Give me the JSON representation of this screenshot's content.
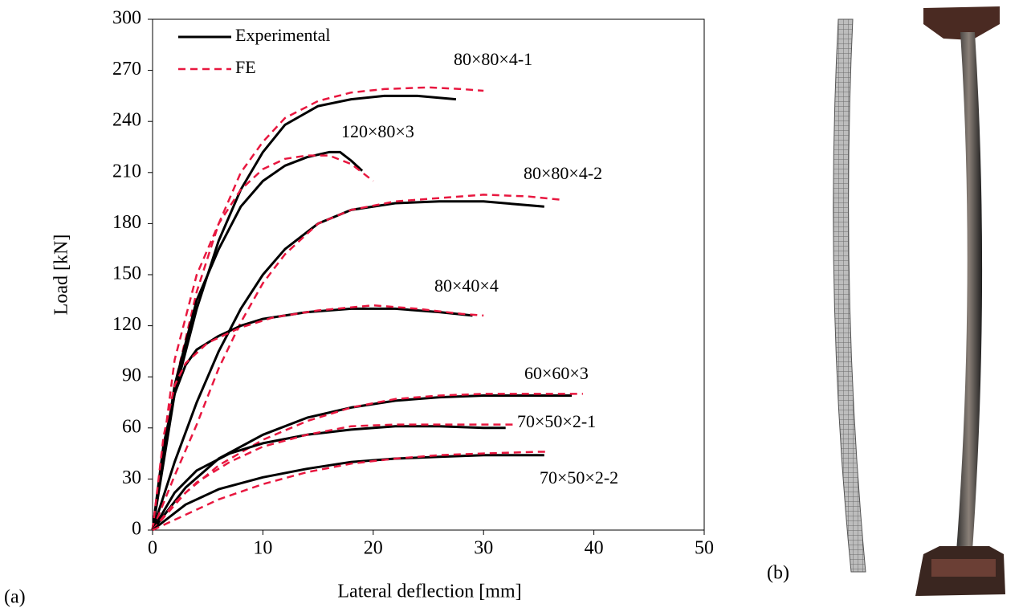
{
  "chart_data": {
    "type": "line",
    "xlabel": "Lateral deflection [mm]",
    "ylabel": "Load [kN]",
    "xlim": [
      0,
      50
    ],
    "ylim": [
      0,
      300
    ],
    "xticks": [
      0,
      10,
      20,
      30,
      40,
      50
    ],
    "yticks": [
      0,
      30,
      60,
      90,
      120,
      150,
      180,
      210,
      240,
      270,
      300
    ],
    "legend": [
      {
        "name": "Experimental",
        "color": "#000000",
        "dashed": false
      },
      {
        "name": "FE",
        "color": "#e8173f",
        "dashed": true
      }
    ],
    "groups": [
      {
        "label": "80×80×4-1",
        "experimental": {
          "x": [
            0,
            2,
            4,
            6,
            8,
            10,
            12,
            15,
            18,
            21,
            24,
            27.5
          ],
          "values": [
            0,
            80,
            130,
            170,
            200,
            222,
            238,
            249,
            253,
            255,
            255,
            253
          ]
        },
        "fe": {
          "x": [
            0,
            2,
            4,
            6,
            8,
            10,
            12,
            15,
            18,
            21,
            25,
            28,
            30
          ],
          "values": [
            0,
            85,
            140,
            180,
            210,
            228,
            242,
            252,
            257,
            259,
            260,
            259,
            258
          ]
        }
      },
      {
        "label": "120×80×3",
        "experimental": {
          "x": [
            0,
            2,
            4,
            6,
            8,
            10,
            12,
            14,
            16,
            17,
            18,
            19
          ],
          "values": [
            0,
            85,
            135,
            165,
            190,
            205,
            214,
            219,
            222,
            222,
            217,
            211
          ]
        },
        "fe": {
          "x": [
            0,
            2,
            4,
            6,
            8,
            10,
            12,
            14,
            16,
            18,
            19,
            20
          ],
          "values": [
            0,
            100,
            150,
            180,
            200,
            212,
            218,
            220,
            220,
            215,
            210,
            205
          ]
        }
      },
      {
        "label": "80×80×4-2",
        "experimental": {
          "x": [
            0,
            2,
            4,
            6,
            8,
            10,
            12,
            15,
            18,
            22,
            26,
            30,
            35.5
          ],
          "values": [
            0,
            40,
            75,
            105,
            130,
            150,
            165,
            180,
            188,
            192,
            193,
            193,
            190
          ]
        },
        "fe": {
          "x": [
            0,
            2,
            4,
            6,
            8,
            10,
            12,
            15,
            18,
            22,
            26,
            30,
            34,
            37
          ],
          "values": [
            0,
            32,
            62,
            95,
            122,
            145,
            162,
            180,
            188,
            193,
            195,
            197,
            196,
            194
          ]
        }
      },
      {
        "label": "80×40×4",
        "experimental": {
          "x": [
            0,
            1,
            2,
            3,
            4,
            6,
            8,
            10,
            14,
            18,
            22,
            26,
            29
          ],
          "values": [
            0,
            50,
            80,
            97,
            106,
            114,
            120,
            124,
            128,
            130,
            130,
            128,
            126
          ]
        },
        "fe": {
          "x": [
            0,
            1,
            2,
            3,
            5,
            8,
            11,
            15,
            20,
            24,
            28,
            30
          ],
          "values": [
            0,
            55,
            85,
            98,
            110,
            119,
            125,
            129,
            132,
            130,
            127,
            126
          ]
        }
      },
      {
        "label": "60×60×3",
        "experimental": {
          "x": [
            0,
            3,
            6,
            10,
            14,
            18,
            22,
            26,
            30,
            34,
            38
          ],
          "values": [
            0,
            25,
            42,
            56,
            66,
            72,
            76,
            78,
            79,
            79,
            79
          ]
        },
        "fe": {
          "x": [
            0,
            3,
            6,
            10,
            14,
            18,
            22,
            26,
            30,
            34,
            39
          ],
          "values": [
            0,
            22,
            38,
            53,
            64,
            72,
            77,
            79,
            80,
            80,
            80
          ]
        }
      },
      {
        "label": "70×50×2-1",
        "experimental": {
          "x": [
            0,
            2,
            4,
            7,
            10,
            14,
            18,
            22,
            26,
            30,
            32
          ],
          "values": [
            0,
            22,
            35,
            45,
            51,
            56,
            59,
            61,
            61,
            60,
            60
          ]
        },
        "fe": {
          "x": [
            0,
            2,
            4,
            7,
            10,
            14,
            18,
            22,
            26,
            30,
            33
          ],
          "values": [
            0,
            16,
            28,
            40,
            49,
            56,
            61,
            62,
            62,
            62,
            62
          ]
        }
      },
      {
        "label": "70×50×2-2",
        "experimental": {
          "x": [
            0,
            3,
            6,
            10,
            14,
            18,
            22,
            26,
            30,
            35.5
          ],
          "values": [
            0,
            15,
            24,
            31,
            36,
            40,
            42,
            43,
            44,
            44
          ]
        },
        "fe": {
          "x": [
            0,
            3,
            6,
            10,
            14,
            18,
            22,
            26,
            30,
            35,
            36
          ],
          "values": [
            0,
            9,
            18,
            27,
            34,
            39,
            42,
            44,
            45,
            46,
            46
          ]
        }
      }
    ]
  },
  "panel_labels": [
    "(a)",
    "(b)"
  ]
}
